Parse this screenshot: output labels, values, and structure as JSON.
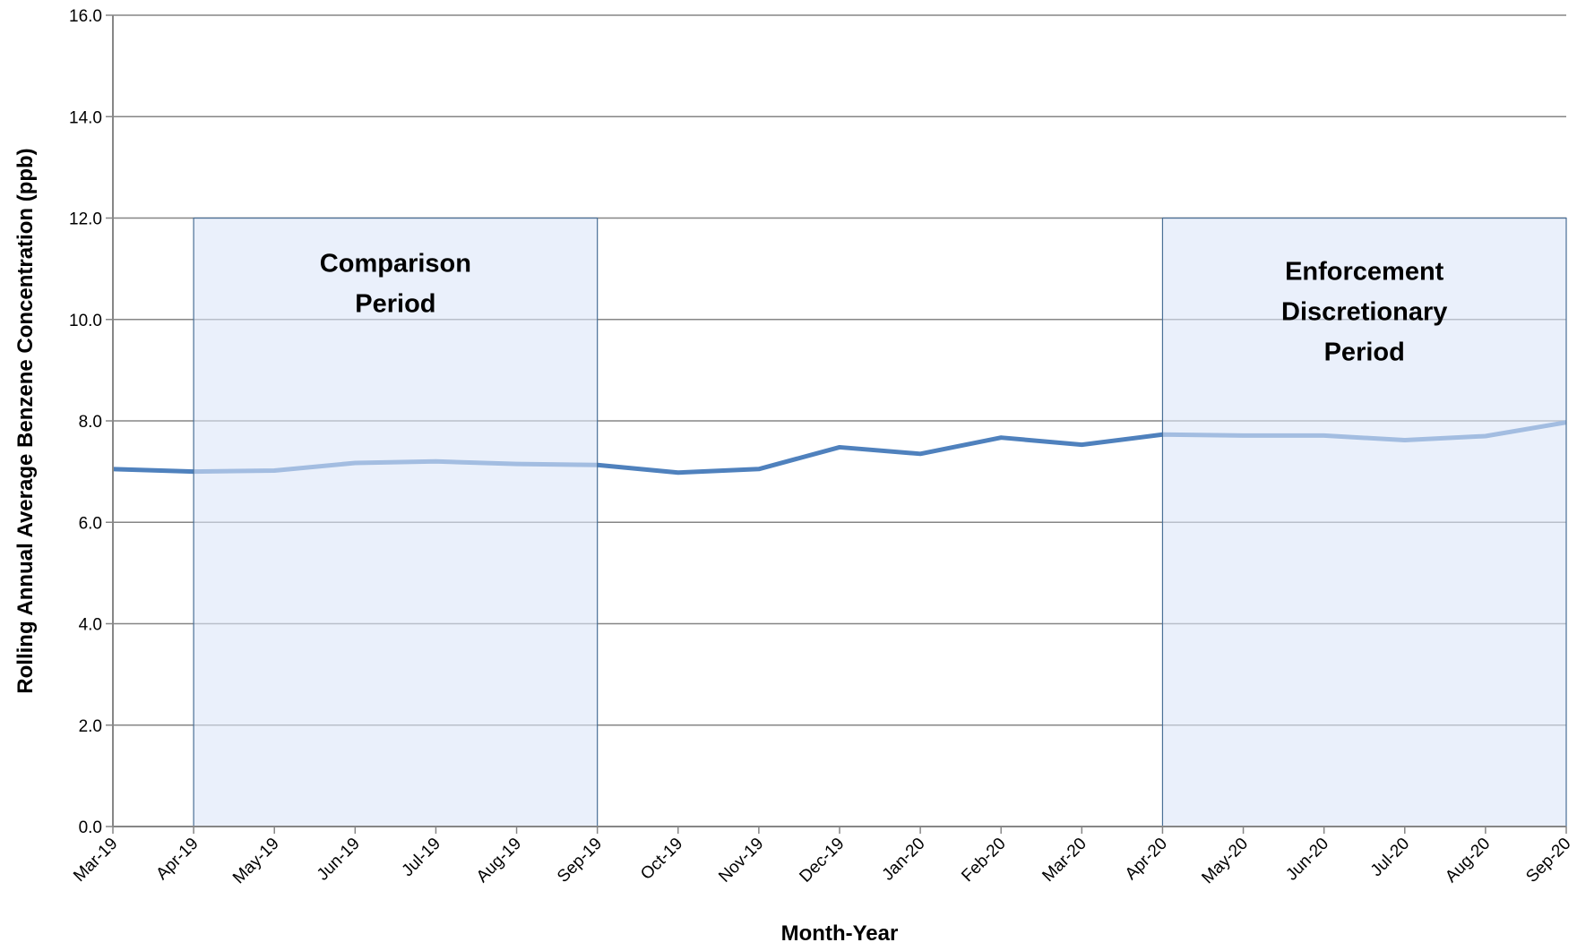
{
  "chart_data": {
    "type": "line",
    "x_label": "Month-Year",
    "y_label": "Rolling Annual Average Benzene Concentration (ppb)",
    "categories": [
      "Mar-19",
      "Apr-19",
      "May-19",
      "Jun-19",
      "Jul-19",
      "Aug-19",
      "Sep-19",
      "Oct-19",
      "Nov-19",
      "Dec-19",
      "Jan-20",
      "Feb-20",
      "Mar-20",
      "Apr-20",
      "May-20",
      "Jun-20",
      "Jul-20",
      "Aug-20",
      "Sep-20"
    ],
    "series": [
      {
        "color": "#4f81bd",
        "values": [
          7.05,
          7.0,
          7.02,
          7.17,
          7.2,
          7.15,
          7.13,
          6.98,
          7.05,
          7.48,
          7.35,
          7.67,
          7.53,
          7.73,
          7.71,
          7.71,
          7.62,
          7.7,
          7.97
        ]
      }
    ],
    "ylim": [
      0,
      16
    ],
    "yticks": [
      {
        "value": 0,
        "label": "0.0"
      },
      {
        "value": 2,
        "label": "2.0"
      },
      {
        "value": 4,
        "label": "4.0"
      },
      {
        "value": 6,
        "label": "6.0"
      },
      {
        "value": 8,
        "label": "8.0"
      },
      {
        "value": 10,
        "label": "10.0"
      },
      {
        "value": 12,
        "label": "12.0"
      },
      {
        "value": 14,
        "label": "14.0"
      },
      {
        "value": 16,
        "label": "16.0"
      }
    ],
    "grid": true,
    "regions": [
      {
        "label": [
          "Comparison",
          "Period"
        ],
        "start": "Apr-19",
        "end": "Sep-19",
        "top": 12,
        "color": "#dce6f8"
      },
      {
        "label": [
          "Enforcement",
          "Discretionary",
          "Period"
        ],
        "start": "Apr-20",
        "end": "Sep-20",
        "top": 12,
        "color": "#dce6f8"
      }
    ]
  }
}
